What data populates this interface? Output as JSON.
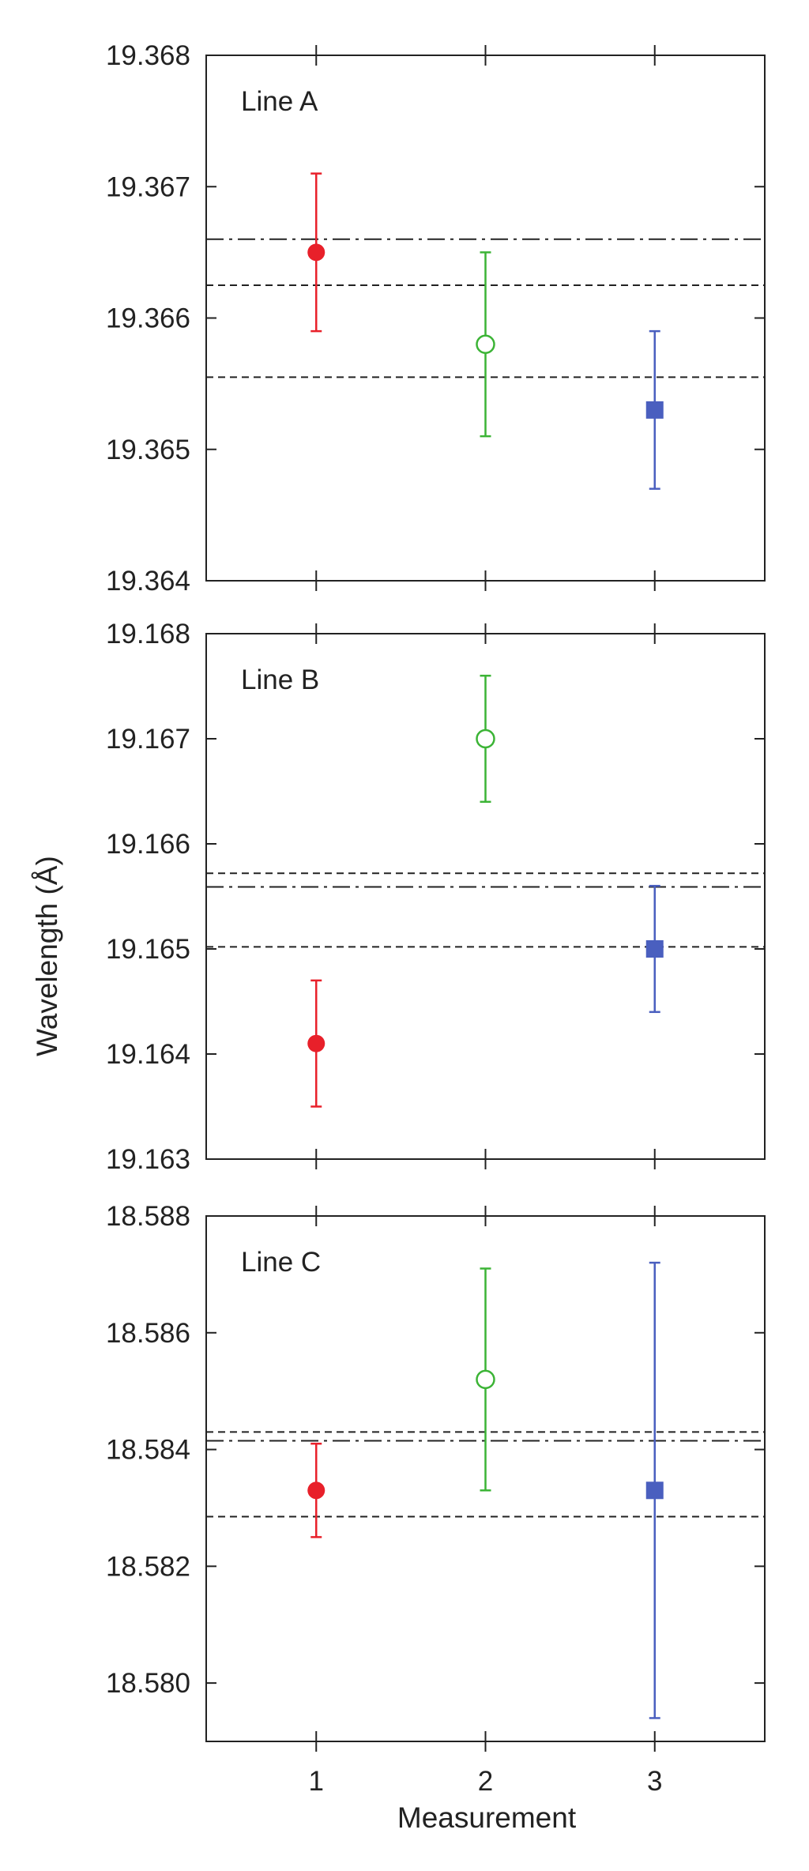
{
  "chart_data": {
    "type": "scatter",
    "ylabel": "Wavelength (Å)",
    "xlabel": "Measurement",
    "xlim": [
      0.35,
      3.65
    ],
    "x_ticks": [
      1,
      2,
      3
    ],
    "x_tick_labels": [
      "1",
      "2",
      "3"
    ],
    "series": [
      {
        "marker": "filled-circle",
        "color": "#e8202a"
      },
      {
        "marker": "open-circle",
        "color": "#3cb436"
      },
      {
        "marker": "filled-square",
        "color": "#4a5fbf"
      }
    ],
    "panels": [
      {
        "label": "Line A",
        "ylim": [
          19.364,
          19.368
        ],
        "y_ticks": [
          19.364,
          19.365,
          19.366,
          19.367,
          19.368
        ],
        "y_tick_labels": [
          "19.364",
          "19.365",
          "19.366",
          "19.367",
          "19.368"
        ],
        "points": [
          {
            "x": 1,
            "y": 19.3665,
            "err_low": 19.3659,
            "err_high": 19.3671
          },
          {
            "x": 2,
            "y": 19.3658,
            "err_low": 19.3651,
            "err_high": 19.3665
          },
          {
            "x": 3,
            "y": 19.3653,
            "err_low": 19.3647,
            "err_high": 19.3659
          }
        ],
        "dashdot_line": 19.3666,
        "dashed_lines": [
          19.36625,
          19.36555
        ]
      },
      {
        "label": "Line B",
        "ylim": [
          19.163,
          19.168
        ],
        "y_ticks": [
          19.163,
          19.164,
          19.165,
          19.166,
          19.167,
          19.168
        ],
        "y_tick_labels": [
          "19.163",
          "19.164",
          "19.165",
          "19.166",
          "19.167",
          "19.168"
        ],
        "points": [
          {
            "x": 1,
            "y": 19.1641,
            "err_low": 19.1635,
            "err_high": 19.1647
          },
          {
            "x": 2,
            "y": 19.167,
            "err_low": 19.1664,
            "err_high": 19.1676
          },
          {
            "x": 3,
            "y": 19.165,
            "err_low": 19.1644,
            "err_high": 19.1656
          }
        ],
        "dashdot_line": 19.16559,
        "dashed_lines": [
          19.16572,
          19.16502
        ]
      },
      {
        "label": "Line C",
        "ylim": [
          18.579,
          18.588
        ],
        "y_ticks": [
          18.58,
          18.582,
          18.584,
          18.586,
          18.588
        ],
        "y_tick_labels": [
          "18.580",
          "18.582",
          "18.584",
          "18.586",
          "18.588"
        ],
        "points": [
          {
            "x": 1,
            "y": 18.5833,
            "err_low": 18.5825,
            "err_high": 18.5841
          },
          {
            "x": 2,
            "y": 18.5852,
            "err_low": 18.5833,
            "err_high": 18.5871
          },
          {
            "x": 3,
            "y": 18.5833,
            "err_low": 18.5794,
            "err_high": 18.5872
          }
        ],
        "dashdot_line": 18.58415,
        "dashed_lines": [
          18.5843,
          18.58285
        ]
      }
    ]
  }
}
